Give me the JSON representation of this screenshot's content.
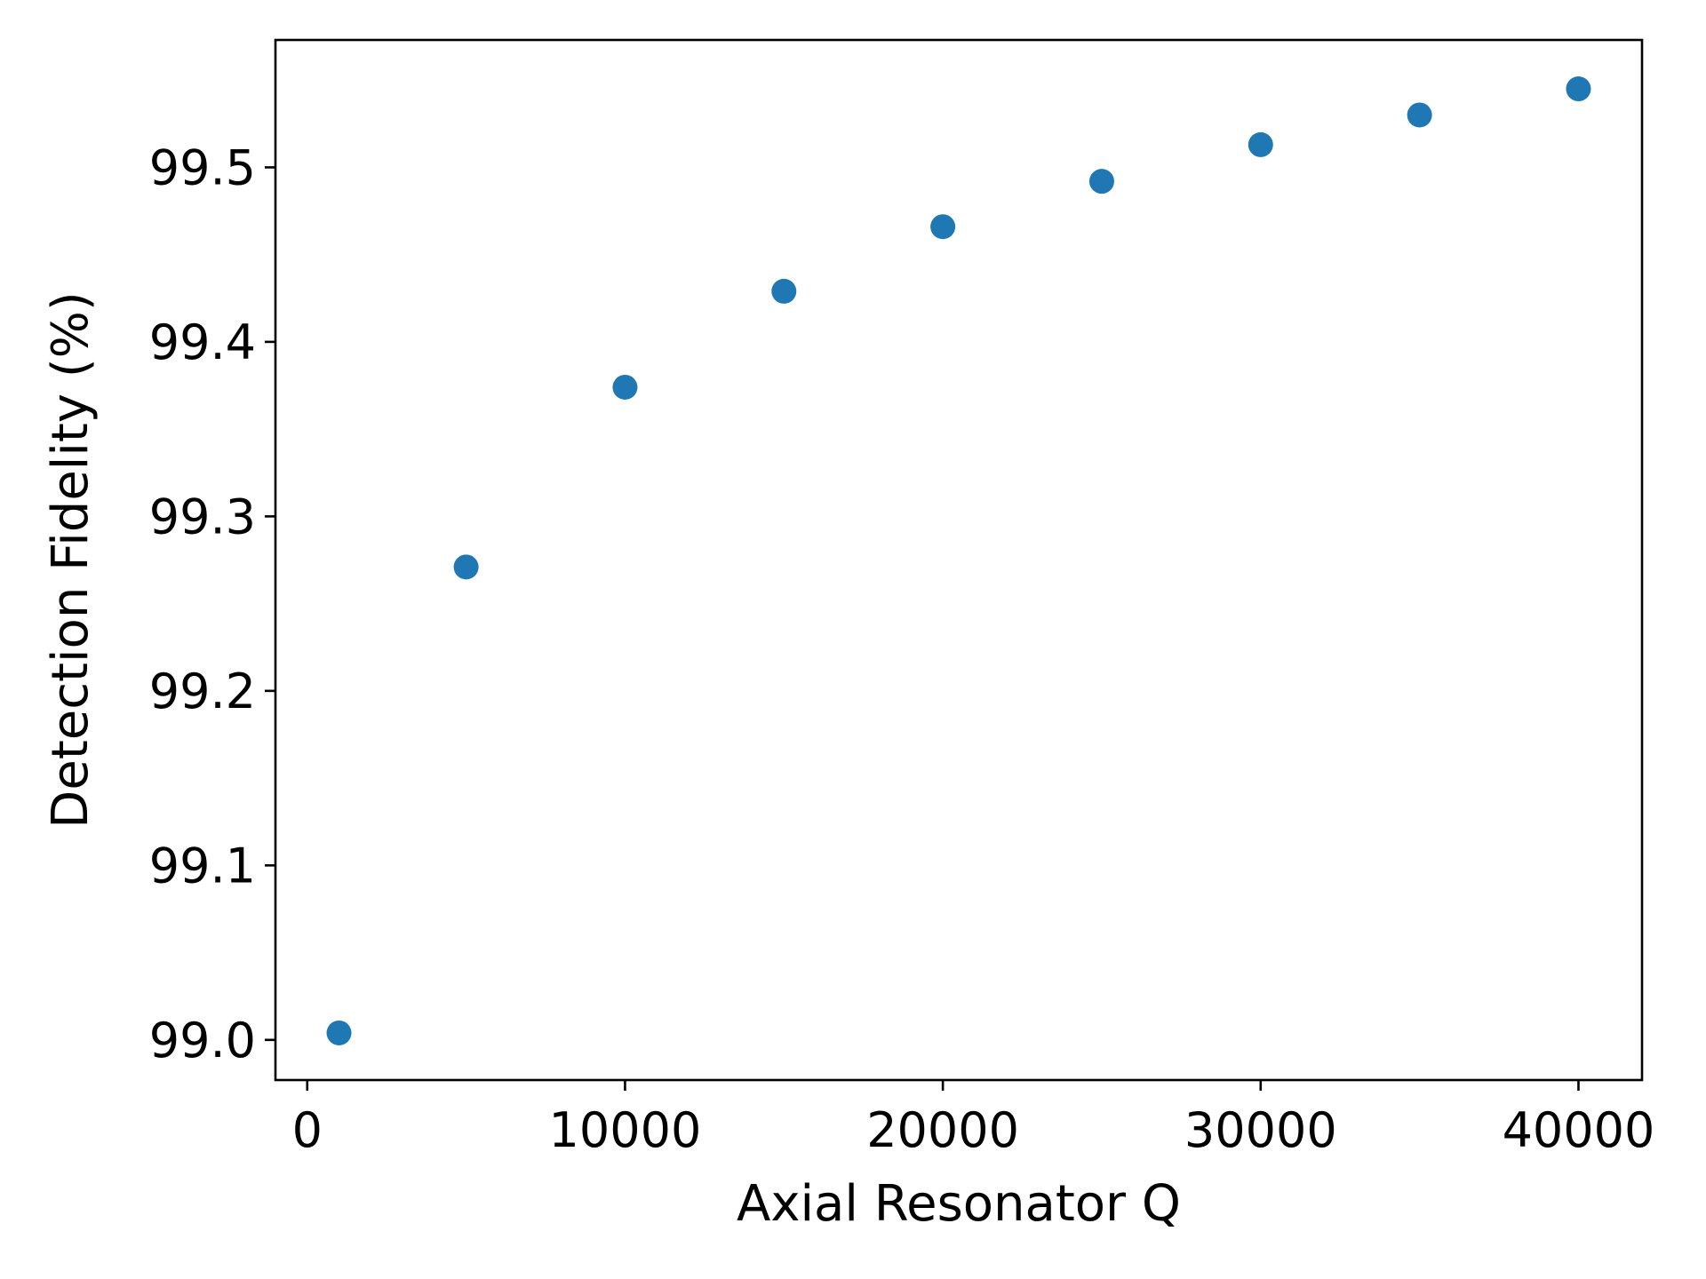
{
  "chart_data": {
    "type": "scatter",
    "title": "",
    "xlabel": "Axial Resonator Q",
    "ylabel": "Detection Fidelity (%)",
    "xlim": [
      -1000,
      42000
    ],
    "ylim": [
      98.977,
      99.573
    ],
    "xticks": [
      0,
      10000,
      20000,
      30000,
      40000
    ],
    "xtick_labels": [
      "0",
      "10000",
      "20000",
      "30000",
      "40000"
    ],
    "yticks": [
      99.0,
      99.1,
      99.2,
      99.3,
      99.4,
      99.5
    ],
    "ytick_labels": [
      "99.0",
      "99.1",
      "99.2",
      "99.3",
      "99.4",
      "99.5"
    ],
    "grid": false,
    "legend": false,
    "series": [
      {
        "color": "#1f77b4",
        "x": [
          1000,
          5000,
          10000,
          15000,
          20000,
          25000,
          30000,
          35000,
          40000
        ],
        "y": [
          99.004,
          99.271,
          99.374,
          99.429,
          99.466,
          99.492,
          99.513,
          99.53,
          99.545
        ]
      }
    ]
  }
}
